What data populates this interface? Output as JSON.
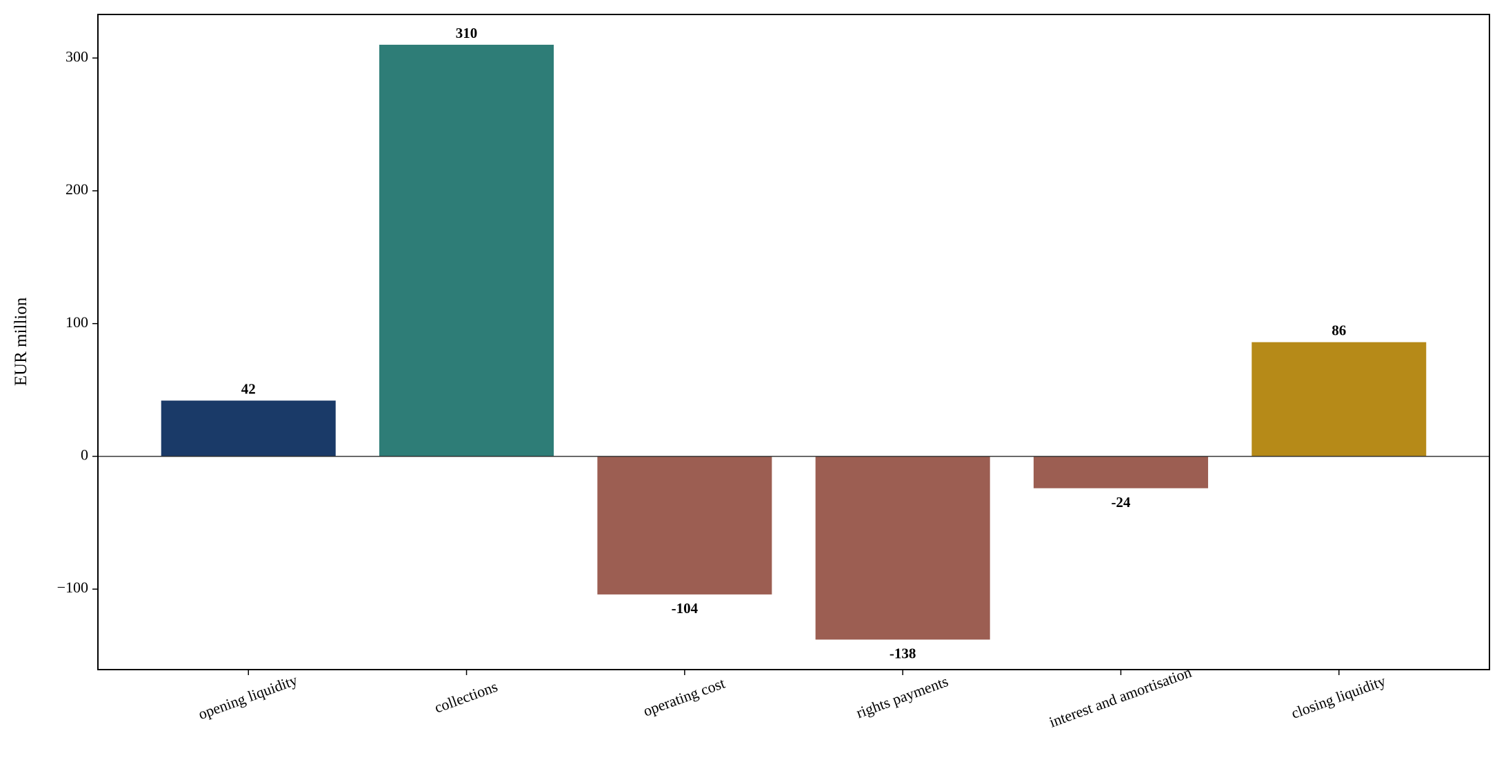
{
  "chart_data": {
    "type": "bar",
    "y_label": "EUR million",
    "categories": [
      "opening liquidity",
      "collections",
      "operating cost",
      "rights payments",
      "interest and amortisation",
      "closing liquidity"
    ],
    "values": [
      42,
      310,
      -104,
      -138,
      -24,
      86
    ],
    "colors": [
      "#1a3a68",
      "#2e7d77",
      "#9c5e52",
      "#9c5e52",
      "#9c5e52",
      "#b68a18"
    ],
    "ylim": [
      -160.6,
      332.8
    ],
    "yticks": [
      {
        "value": -100,
        "label": "−100"
      },
      0,
      100,
      200,
      300
    ],
    "grid": false
  }
}
